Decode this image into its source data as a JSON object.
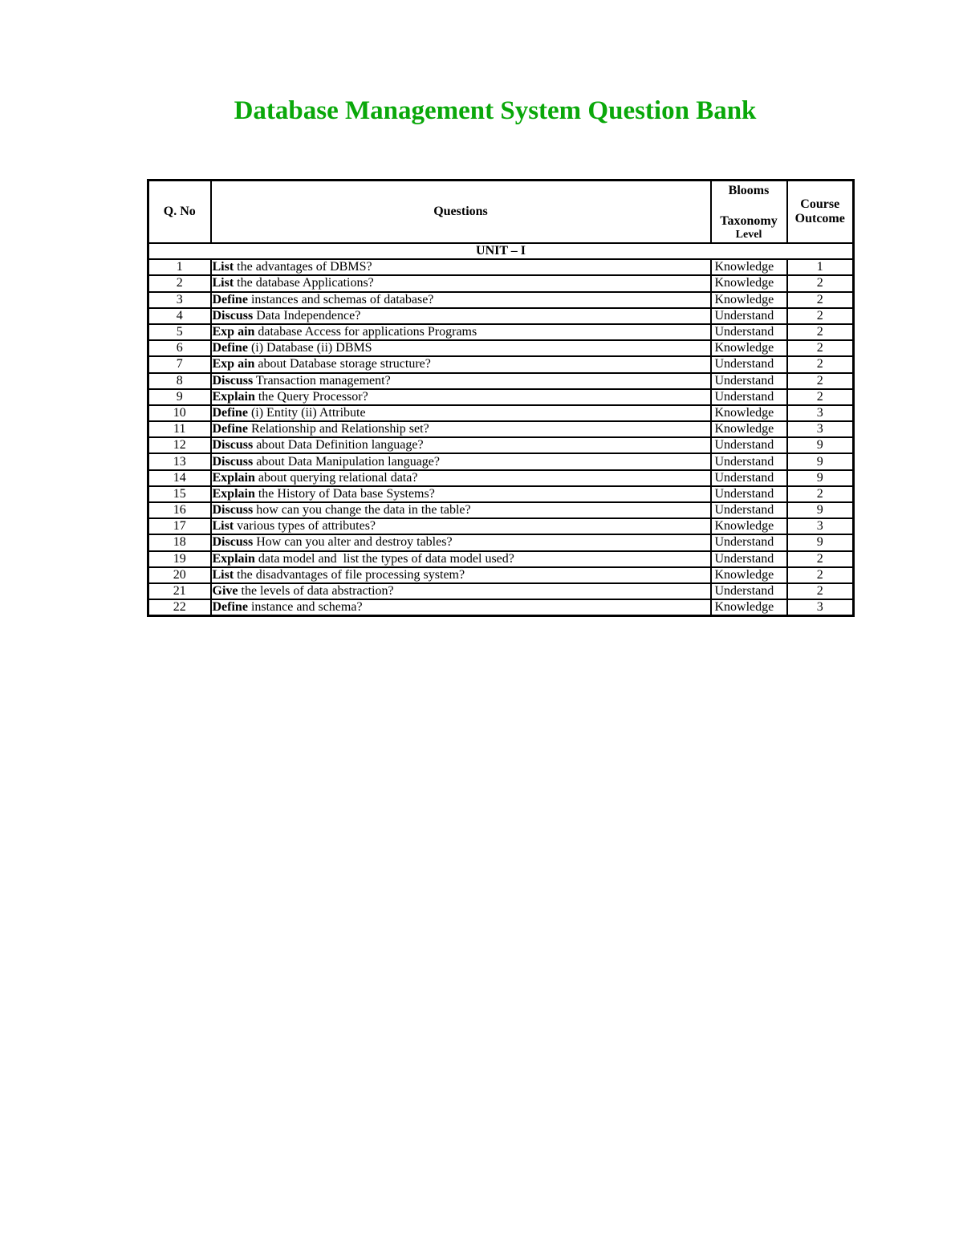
{
  "title": "Database Management System Question Bank",
  "headers": {
    "qno": "Q. No",
    "questions": "Questions",
    "blooms_1": "Blooms",
    "blooms_2": "Taxonomy",
    "blooms_3": "Level",
    "co_1": "Course",
    "co_2": "Outcome"
  },
  "unit": "UNIT – I",
  "rows": [
    {
      "no": "1",
      "verb": "List",
      "rest": " the advantages of DBMS?",
      "level": "Knowledge",
      "co": "1"
    },
    {
      "no": "2",
      "verb": "List",
      "rest": " the database Applications?",
      "level": "Knowledge",
      "co": "2"
    },
    {
      "no": "3",
      "verb": "Define",
      "rest": " instances and schemas of database?",
      "level": "Knowledge",
      "co": "2"
    },
    {
      "no": "4",
      "verb": "Discuss",
      "rest": " Data Independence?",
      "level": "Understand",
      "co": "2"
    },
    {
      "no": "5",
      "verb": "Exp ain",
      "rest": " database Access for applications Programs",
      "level": "Understand",
      "co": "2"
    },
    {
      "no": "6",
      "verb": "Define",
      "rest": " (i) Database (ii) DBMS",
      "level": "Knowledge",
      "co": "2"
    },
    {
      "no": "7",
      "verb": "Exp ain",
      "rest": " about Database storage structure?",
      "level": "Understand",
      "co": "2"
    },
    {
      "no": "8",
      "verb": "Discuss",
      "rest": " Transaction management?",
      "level": "Understand",
      "co": "2"
    },
    {
      "no": "9",
      "verb": "Explain",
      "rest": " the Query Processor?",
      "level": "Understand",
      "co": "2"
    },
    {
      "no": "10",
      "verb": "Define",
      "rest": " (i) Entity (ii) Attribute",
      "level": "Knowledge",
      "co": "3"
    },
    {
      "no": "11",
      "verb": "Define",
      "rest": " Relationship and Relationship set?",
      "level": "Knowledge",
      "co": "3"
    },
    {
      "no": "12",
      "verb": "Discuss",
      "rest": " about Data Definition language?",
      "level": "Understand",
      "co": "9"
    },
    {
      "no": "13",
      "verb": "Discuss",
      "rest": " about Data Manipulation language?",
      "level": "Understand",
      "co": "9"
    },
    {
      "no": "14",
      "verb": "Explain",
      "rest": " about querying relational data?",
      "level": "Understand",
      "co": "9"
    },
    {
      "no": "15",
      "verb": "Explain",
      "rest": " the History of Data base Systems?",
      "level": "Understand",
      "co": "2"
    },
    {
      "no": "16",
      "verb": "Discuss",
      "rest": " how can you change the data in the table?",
      "level": "Understand",
      "co": "9"
    },
    {
      "no": "17",
      "verb": "List",
      "rest": " various types of attributes?",
      "level": "Knowledge",
      "co": "3"
    },
    {
      "no": "18",
      "verb": "Discuss",
      "rest": " How can you alter and destroy tables?",
      "level": "Understand",
      "co": "9"
    },
    {
      "no": "19",
      "verb": "Explain",
      "rest": " data model and  list the types of data model used?",
      "level": "Understand",
      "co": "2"
    },
    {
      "no": "20",
      "verb": "List",
      "rest": " the disadvantages of file processing system?",
      "level": "Knowledge",
      "co": "2"
    },
    {
      "no": "21",
      "verb": "Give",
      "rest": " the levels of data abstraction?",
      "level": "Understand",
      "co": "2"
    },
    {
      "no": "22",
      "verb": "Define",
      "rest": " instance and schema?",
      "level": "Knowledge",
      "co": "3"
    }
  ]
}
